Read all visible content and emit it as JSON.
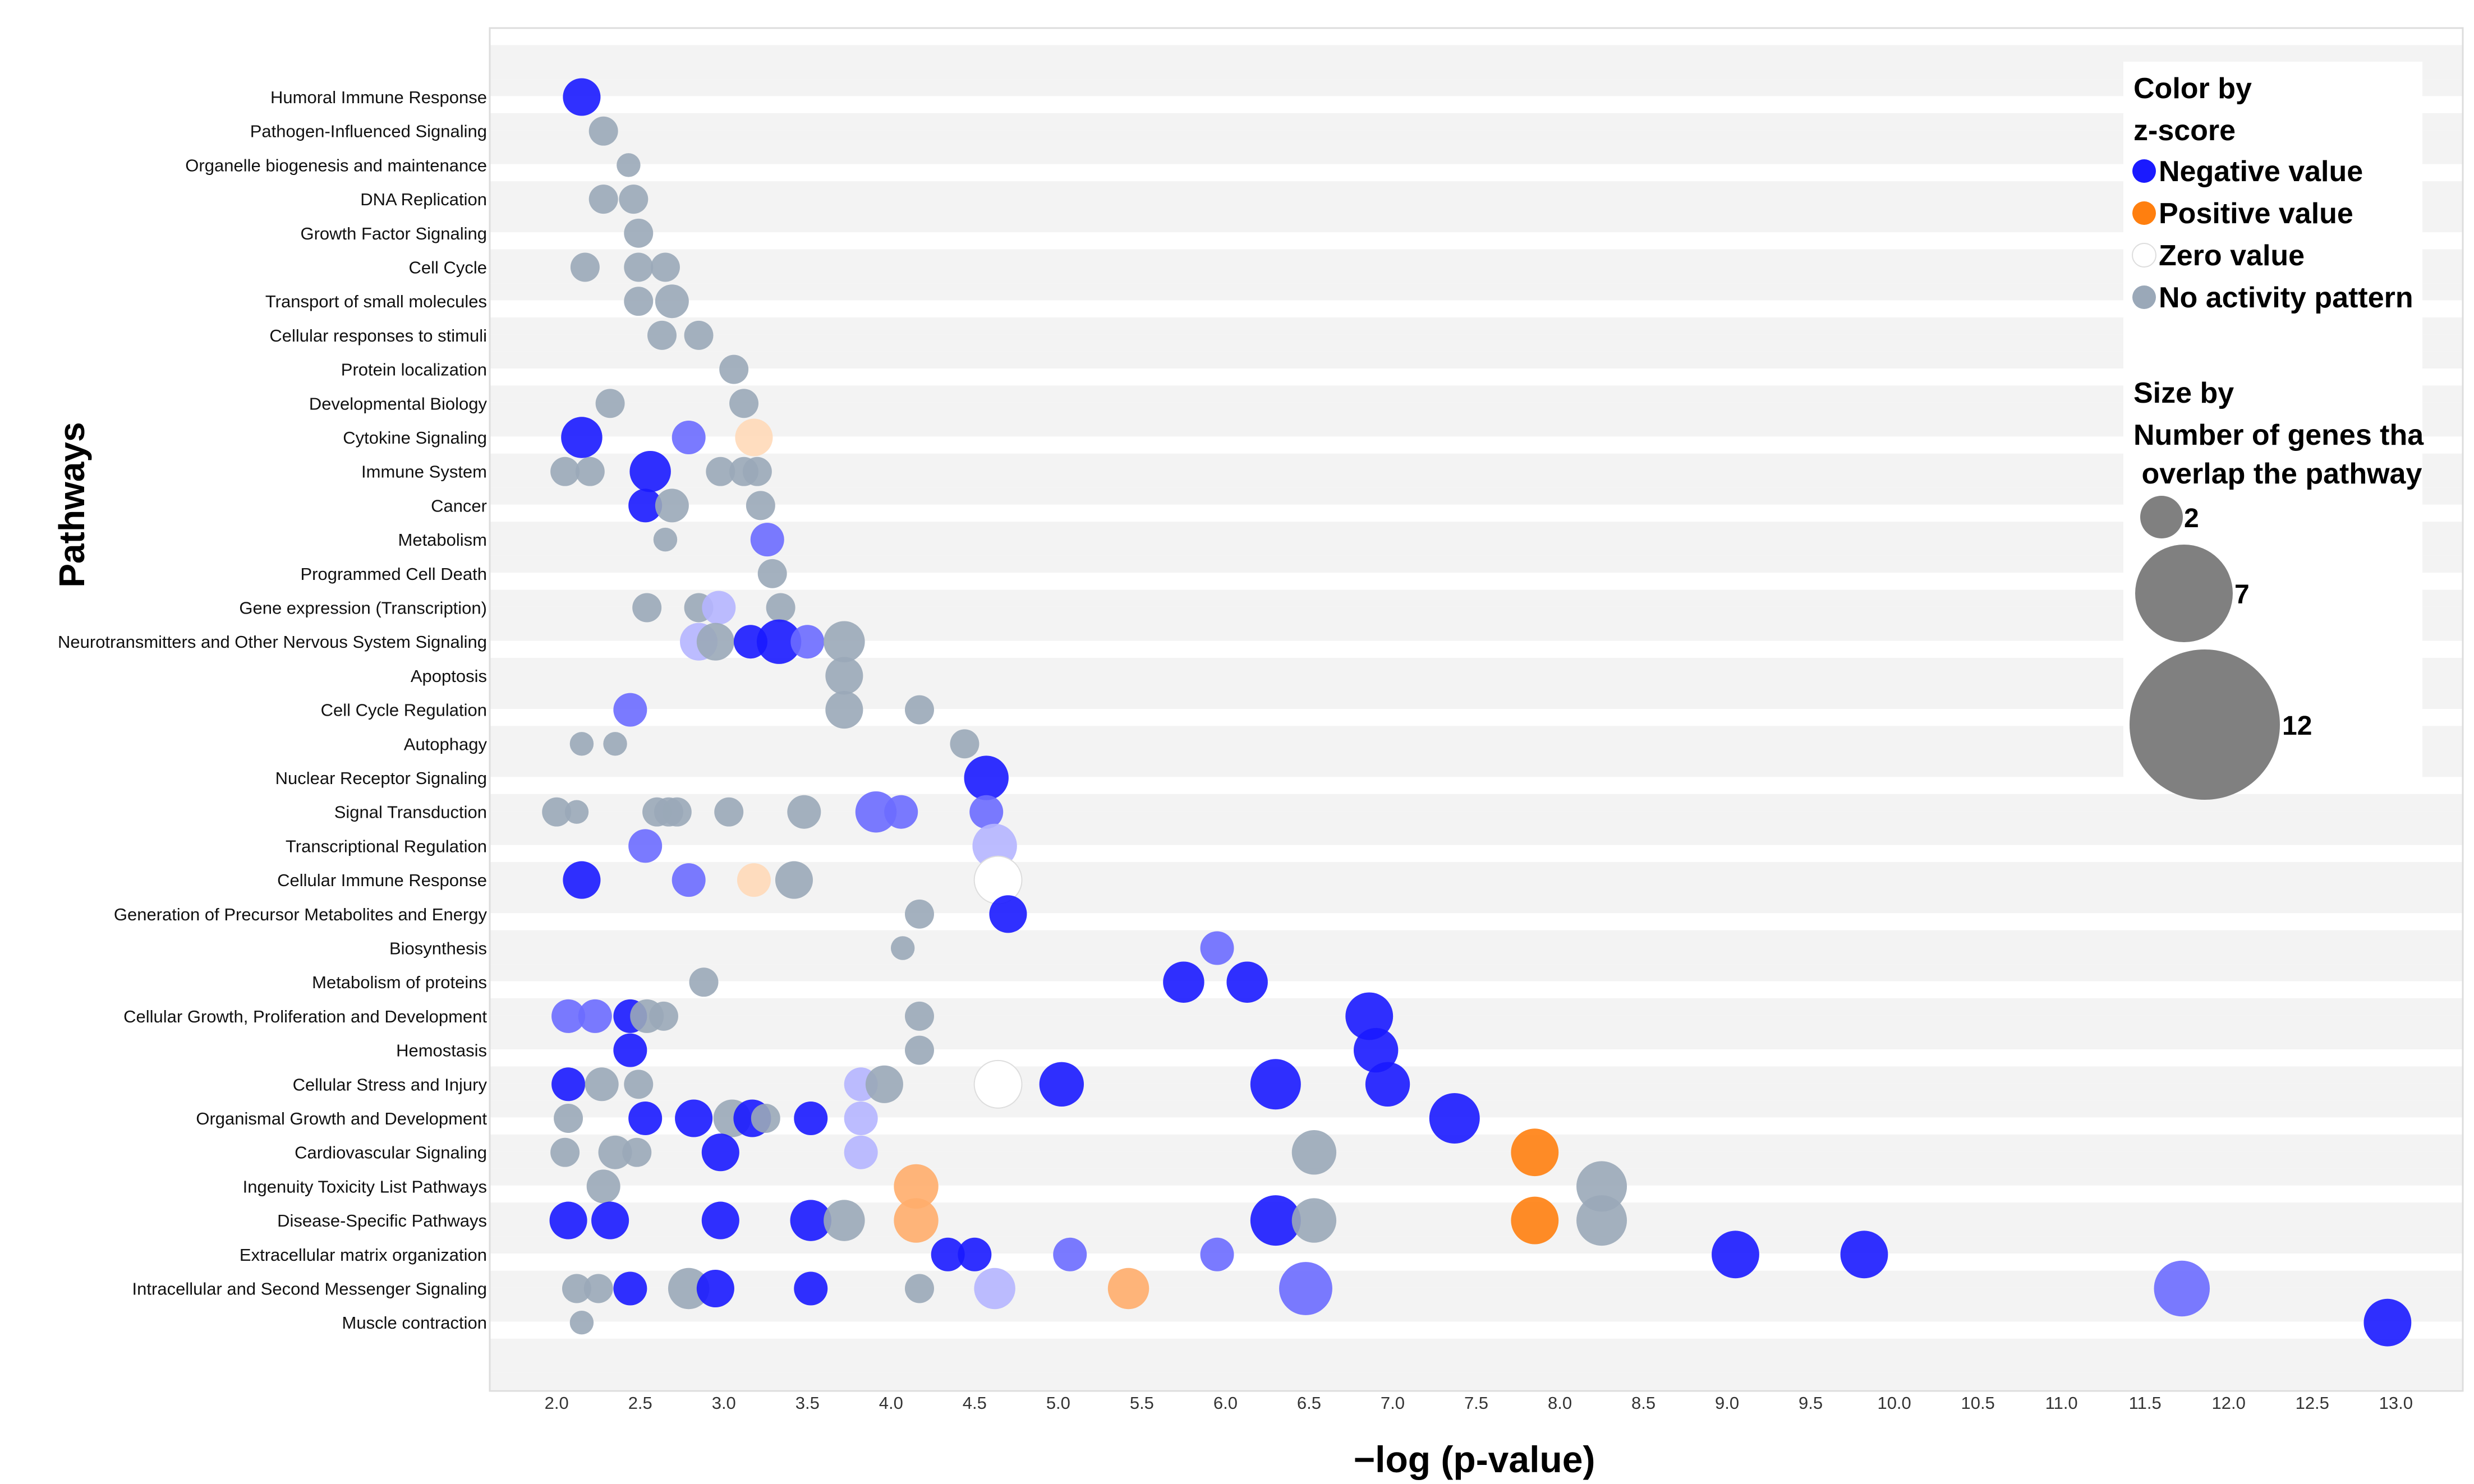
{
  "chart_data": {
    "type": "bubble",
    "ylabel": "Pathways",
    "xlabel": "−log (p-value)",
    "xlim": [
      1.6,
      13.4
    ],
    "x_ticks": [
      "2.0",
      "2.5",
      "3.0",
      "3.5",
      "4.0",
      "4.5",
      "5.0",
      "5.5",
      "6.0",
      "6.5",
      "7.0",
      "7.5",
      "8.0",
      "8.5",
      "9.0",
      "9.5",
      "10.0",
      "10.5",
      "11.0",
      "11.5",
      "12.0",
      "12.5",
      "13.0"
    ],
    "categories": [
      "Humoral Immune Response",
      "Pathogen-Influenced Signaling",
      "Organelle biogenesis and maintenance",
      "DNA Replication",
      "Growth Factor Signaling",
      "Cell Cycle",
      "Transport of small molecules",
      "Cellular responses to stimuli",
      "Protein localization",
      "Developmental Biology",
      "Cytokine Signaling",
      "Immune System",
      "Cancer",
      "Metabolism",
      "Programmed Cell Death",
      "Gene expression (Transcription)",
      "Neurotransmitters and Other Nervous System Signaling",
      "Apoptosis",
      "Cell Cycle Regulation",
      "Autophagy",
      "Nuclear Receptor Signaling",
      "Signal Transduction",
      "Transcriptional Regulation",
      "Cellular Immune Response",
      "Generation of Precursor Metabolites and Energy",
      "Biosynthesis",
      "Metabolism of proteins",
      "Cellular Growth, Proliferation and Development",
      "Hemostasis",
      "Cellular Stress and Injury",
      "Organismal Growth and Development",
      "Cardiovascular Signaling",
      "Ingenuity Toxicity List Pathways",
      "Disease-Specific Pathways",
      "Extracellular matrix organization",
      "Intracellular and Second Messenger Signaling",
      "Muscle contraction"
    ],
    "color_map": {
      "neg": "#1a1aff",
      "neg_light": "#6b6bff",
      "neg_pale": "#b5b5ff",
      "pos": "#ff7f0f",
      "pos_light": "#ffad6b",
      "pos_pale": "#ffd9b8",
      "zero": "#ffffff",
      "none": "#9aa8b8"
    },
    "points": [
      {
        "cat": 0,
        "x": 2.15,
        "size": 5,
        "color": "neg"
      },
      {
        "cat": 1,
        "x": 2.28,
        "size": 3,
        "color": "none"
      },
      {
        "cat": 2,
        "x": 2.43,
        "size": 2,
        "color": "none"
      },
      {
        "cat": 3,
        "x": 2.28,
        "size": 3,
        "color": "none"
      },
      {
        "cat": 3,
        "x": 2.46,
        "size": 3,
        "color": "none"
      },
      {
        "cat": 4,
        "x": 2.49,
        "size": 3,
        "color": "none"
      },
      {
        "cat": 5,
        "x": 2.17,
        "size": 3,
        "color": "none"
      },
      {
        "cat": 5,
        "x": 2.49,
        "size": 3,
        "color": "none"
      },
      {
        "cat": 5,
        "x": 2.65,
        "size": 3,
        "color": "none"
      },
      {
        "cat": 6,
        "x": 2.49,
        "size": 3,
        "color": "none"
      },
      {
        "cat": 6,
        "x": 2.69,
        "size": 4,
        "color": "none"
      },
      {
        "cat": 7,
        "x": 2.63,
        "size": 3,
        "color": "none"
      },
      {
        "cat": 7,
        "x": 2.85,
        "size": 3,
        "color": "none"
      },
      {
        "cat": 8,
        "x": 3.06,
        "size": 3,
        "color": "none"
      },
      {
        "cat": 9,
        "x": 2.32,
        "size": 3,
        "color": "none"
      },
      {
        "cat": 9,
        "x": 3.12,
        "size": 3,
        "color": "none"
      },
      {
        "cat": 10,
        "x": 2.15,
        "size": 6,
        "color": "neg"
      },
      {
        "cat": 10,
        "x": 2.79,
        "size": 4,
        "color": "neg_light"
      },
      {
        "cat": 10,
        "x": 3.18,
        "size": 5,
        "color": "pos_pale"
      },
      {
        "cat": 11,
        "x": 2.05,
        "size": 3,
        "color": "none"
      },
      {
        "cat": 11,
        "x": 2.2,
        "size": 3,
        "color": "none"
      },
      {
        "cat": 11,
        "x": 2.56,
        "size": 6,
        "color": "neg"
      },
      {
        "cat": 11,
        "x": 2.98,
        "size": 3,
        "color": "none"
      },
      {
        "cat": 11,
        "x": 3.12,
        "size": 3,
        "color": "none"
      },
      {
        "cat": 11,
        "x": 3.2,
        "size": 3,
        "color": "none"
      },
      {
        "cat": 12,
        "x": 2.53,
        "size": 4,
        "color": "neg"
      },
      {
        "cat": 12,
        "x": 2.69,
        "size": 4,
        "color": "none"
      },
      {
        "cat": 12,
        "x": 3.22,
        "size": 3,
        "color": "none"
      },
      {
        "cat": 13,
        "x": 2.65,
        "size": 2,
        "color": "none"
      },
      {
        "cat": 13,
        "x": 3.26,
        "size": 4,
        "color": "neg_light"
      },
      {
        "cat": 14,
        "x": 3.29,
        "size": 3,
        "color": "none"
      },
      {
        "cat": 15,
        "x": 2.54,
        "size": 3,
        "color": "none"
      },
      {
        "cat": 15,
        "x": 2.85,
        "size": 3,
        "color": "none"
      },
      {
        "cat": 15,
        "x": 2.97,
        "size": 4,
        "color": "neg_pale"
      },
      {
        "cat": 15,
        "x": 3.34,
        "size": 3,
        "color": "none"
      },
      {
        "cat": 16,
        "x": 2.85,
        "size": 5,
        "color": "neg_pale"
      },
      {
        "cat": 16,
        "x": 2.95,
        "size": 5,
        "color": "none"
      },
      {
        "cat": 16,
        "x": 3.16,
        "size": 4,
        "color": "neg"
      },
      {
        "cat": 16,
        "x": 3.33,
        "size": 7,
        "color": "neg"
      },
      {
        "cat": 16,
        "x": 3.5,
        "size": 4,
        "color": "neg_light"
      },
      {
        "cat": 16,
        "x": 3.72,
        "size": 6,
        "color": "none"
      },
      {
        "cat": 17,
        "x": 3.72,
        "size": 5,
        "color": "none"
      },
      {
        "cat": 18,
        "x": 2.44,
        "size": 4,
        "color": "neg_light"
      },
      {
        "cat": 18,
        "x": 3.72,
        "size": 5,
        "color": "none"
      },
      {
        "cat": 18,
        "x": 4.17,
        "size": 3,
        "color": "none"
      },
      {
        "cat": 19,
        "x": 2.15,
        "size": 2,
        "color": "none"
      },
      {
        "cat": 19,
        "x": 2.35,
        "size": 2,
        "color": "none"
      },
      {
        "cat": 19,
        "x": 4.44,
        "size": 3,
        "color": "none"
      },
      {
        "cat": 20,
        "x": 4.57,
        "size": 7,
        "color": "neg"
      },
      {
        "cat": 21,
        "x": 2.0,
        "size": 3,
        "color": "none"
      },
      {
        "cat": 21,
        "x": 2.12,
        "size": 2,
        "color": "none"
      },
      {
        "cat": 21,
        "x": 2.6,
        "size": 3,
        "color": "none"
      },
      {
        "cat": 21,
        "x": 2.67,
        "size": 3,
        "color": "none"
      },
      {
        "cat": 21,
        "x": 2.72,
        "size": 3,
        "color": "none"
      },
      {
        "cat": 21,
        "x": 3.03,
        "size": 3,
        "color": "none"
      },
      {
        "cat": 21,
        "x": 3.48,
        "size": 4,
        "color": "none"
      },
      {
        "cat": 21,
        "x": 3.91,
        "size": 6,
        "color": "neg_light"
      },
      {
        "cat": 21,
        "x": 4.06,
        "size": 4,
        "color": "neg_light"
      },
      {
        "cat": 21,
        "x": 4.57,
        "size": 4,
        "color": "neg_light"
      },
      {
        "cat": 22,
        "x": 2.53,
        "size": 4,
        "color": "neg_light"
      },
      {
        "cat": 22,
        "x": 4.62,
        "size": 7,
        "color": "neg_pale"
      },
      {
        "cat": 23,
        "x": 2.15,
        "size": 5,
        "color": "neg"
      },
      {
        "cat": 23,
        "x": 2.79,
        "size": 4,
        "color": "neg_light"
      },
      {
        "cat": 23,
        "x": 3.18,
        "size": 4,
        "color": "pos_pale"
      },
      {
        "cat": 23,
        "x": 3.42,
        "size": 5,
        "color": "none"
      },
      {
        "cat": 23,
        "x": 4.64,
        "size": 8,
        "color": "zero"
      },
      {
        "cat": 24,
        "x": 4.17,
        "size": 3,
        "color": "none"
      },
      {
        "cat": 24,
        "x": 4.7,
        "size": 5,
        "color": "neg"
      },
      {
        "cat": 25,
        "x": 4.07,
        "size": 2,
        "color": "none"
      },
      {
        "cat": 25,
        "x": 5.95,
        "size": 4,
        "color": "neg_light"
      },
      {
        "cat": 26,
        "x": 2.88,
        "size": 3,
        "color": "none"
      },
      {
        "cat": 26,
        "x": 5.75,
        "size": 6,
        "color": "neg"
      },
      {
        "cat": 26,
        "x": 6.13,
        "size": 6,
        "color": "neg"
      },
      {
        "cat": 27,
        "x": 2.07,
        "size": 4,
        "color": "neg_light"
      },
      {
        "cat": 27,
        "x": 2.23,
        "size": 4,
        "color": "neg_light"
      },
      {
        "cat": 27,
        "x": 2.44,
        "size": 4,
        "color": "neg"
      },
      {
        "cat": 27,
        "x": 2.54,
        "size": 4,
        "color": "none"
      },
      {
        "cat": 27,
        "x": 2.64,
        "size": 3,
        "color": "none"
      },
      {
        "cat": 27,
        "x": 4.17,
        "size": 3,
        "color": "none"
      },
      {
        "cat": 27,
        "x": 6.86,
        "size": 8,
        "color": "neg"
      },
      {
        "cat": 28,
        "x": 2.44,
        "size": 4,
        "color": "neg"
      },
      {
        "cat": 28,
        "x": 4.17,
        "size": 3,
        "color": "none"
      },
      {
        "cat": 28,
        "x": 6.9,
        "size": 7,
        "color": "neg"
      },
      {
        "cat": 29,
        "x": 2.07,
        "size": 4,
        "color": "neg"
      },
      {
        "cat": 29,
        "x": 2.27,
        "size": 4,
        "color": "none"
      },
      {
        "cat": 29,
        "x": 2.49,
        "size": 3,
        "color": "none"
      },
      {
        "cat": 29,
        "x": 3.82,
        "size": 4,
        "color": "neg_pale"
      },
      {
        "cat": 29,
        "x": 3.96,
        "size": 5,
        "color": "none"
      },
      {
        "cat": 29,
        "x": 4.64,
        "size": 8,
        "color": "zero"
      },
      {
        "cat": 29,
        "x": 5.02,
        "size": 7,
        "color": "neg"
      },
      {
        "cat": 29,
        "x": 6.3,
        "size": 9,
        "color": "neg"
      },
      {
        "cat": 29,
        "x": 6.97,
        "size": 7,
        "color": "neg"
      },
      {
        "cat": 30,
        "x": 2.07,
        "size": 3,
        "color": "none"
      },
      {
        "cat": 30,
        "x": 2.53,
        "size": 4,
        "color": "neg"
      },
      {
        "cat": 30,
        "x": 2.82,
        "size": 5,
        "color": "neg"
      },
      {
        "cat": 30,
        "x": 3.05,
        "size": 5,
        "color": "none"
      },
      {
        "cat": 30,
        "x": 3.17,
        "size": 5,
        "color": "neg"
      },
      {
        "cat": 30,
        "x": 3.25,
        "size": 3,
        "color": "none"
      },
      {
        "cat": 30,
        "x": 3.52,
        "size": 4,
        "color": "neg"
      },
      {
        "cat": 30,
        "x": 3.82,
        "size": 4,
        "color": "neg_pale"
      },
      {
        "cat": 30,
        "x": 7.37,
        "size": 9,
        "color": "neg"
      },
      {
        "cat": 31,
        "x": 2.05,
        "size": 3,
        "color": "none"
      },
      {
        "cat": 31,
        "x": 2.35,
        "size": 4,
        "color": "none"
      },
      {
        "cat": 31,
        "x": 2.48,
        "size": 3,
        "color": "none"
      },
      {
        "cat": 31,
        "x": 2.98,
        "size": 5,
        "color": "neg"
      },
      {
        "cat": 31,
        "x": 3.82,
        "size": 4,
        "color": "neg_pale"
      },
      {
        "cat": 31,
        "x": 6.53,
        "size": 7,
        "color": "none"
      },
      {
        "cat": 31,
        "x": 7.85,
        "size": 8,
        "color": "pos"
      },
      {
        "cat": 32,
        "x": 2.28,
        "size": 4,
        "color": "none"
      },
      {
        "cat": 32,
        "x": 4.15,
        "size": 7,
        "color": "pos_light"
      },
      {
        "cat": 32,
        "x": 8.25,
        "size": 9,
        "color": "none"
      },
      {
        "cat": 33,
        "x": 2.07,
        "size": 5,
        "color": "neg"
      },
      {
        "cat": 33,
        "x": 2.32,
        "size": 5,
        "color": "neg"
      },
      {
        "cat": 33,
        "x": 2.98,
        "size": 5,
        "color": "neg"
      },
      {
        "cat": 33,
        "x": 3.52,
        "size": 6,
        "color": "neg"
      },
      {
        "cat": 33,
        "x": 3.72,
        "size": 6,
        "color": "none"
      },
      {
        "cat": 33,
        "x": 4.15,
        "size": 7,
        "color": "pos_light"
      },
      {
        "cat": 33,
        "x": 6.3,
        "size": 9,
        "color": "neg"
      },
      {
        "cat": 33,
        "x": 6.53,
        "size": 7,
        "color": "none"
      },
      {
        "cat": 33,
        "x": 7.85,
        "size": 8,
        "color": "pos"
      },
      {
        "cat": 33,
        "x": 8.25,
        "size": 9,
        "color": "none"
      },
      {
        "cat": 34,
        "x": 4.34,
        "size": 4,
        "color": "neg"
      },
      {
        "cat": 34,
        "x": 4.5,
        "size": 4,
        "color": "neg"
      },
      {
        "cat": 34,
        "x": 5.07,
        "size": 4,
        "color": "neg_light"
      },
      {
        "cat": 34,
        "x": 5.95,
        "size": 4,
        "color": "neg_light"
      },
      {
        "cat": 34,
        "x": 9.05,
        "size": 8,
        "color": "neg"
      },
      {
        "cat": 34,
        "x": 9.82,
        "size": 8,
        "color": "neg"
      },
      {
        "cat": 35,
        "x": 2.12,
        "size": 3,
        "color": "none"
      },
      {
        "cat": 35,
        "x": 2.25,
        "size": 3,
        "color": "none"
      },
      {
        "cat": 35,
        "x": 2.44,
        "size": 4,
        "color": "neg"
      },
      {
        "cat": 35,
        "x": 2.79,
        "size": 6,
        "color": "none"
      },
      {
        "cat": 35,
        "x": 2.95,
        "size": 5,
        "color": "neg"
      },
      {
        "cat": 35,
        "x": 3.52,
        "size": 4,
        "color": "neg"
      },
      {
        "cat": 35,
        "x": 4.17,
        "size": 3,
        "color": "none"
      },
      {
        "cat": 35,
        "x": 4.62,
        "size": 6,
        "color": "neg_pale"
      },
      {
        "cat": 35,
        "x": 5.42,
        "size": 6,
        "color": "pos_light"
      },
      {
        "cat": 35,
        "x": 6.48,
        "size": 10,
        "color": "neg_light"
      },
      {
        "cat": 35,
        "x": 11.72,
        "size": 11,
        "color": "neg_light"
      },
      {
        "cat": 36,
        "x": 2.15,
        "size": 2,
        "color": "none"
      },
      {
        "cat": 36,
        "x": 12.95,
        "size": 8,
        "color": "neg"
      }
    ],
    "legend_color": {
      "title_line1": "Color by",
      "title_line2": "z-score",
      "items": [
        {
          "label": "Negative value",
          "color": "neg"
        },
        {
          "label": "Positive value",
          "color": "pos"
        },
        {
          "label": "Zero value",
          "color": "zero"
        },
        {
          "label": "No activity pattern",
          "color": "none"
        }
      ]
    },
    "legend_size": {
      "title_line1": "Size by",
      "title_line2": "Number of genes tha",
      "title_line3": " overlap the pathway",
      "items": [
        {
          "label": "2",
          "size": 2
        },
        {
          "label": "7",
          "size": 7
        },
        {
          "label": "12",
          "size": 12
        }
      ]
    }
  }
}
